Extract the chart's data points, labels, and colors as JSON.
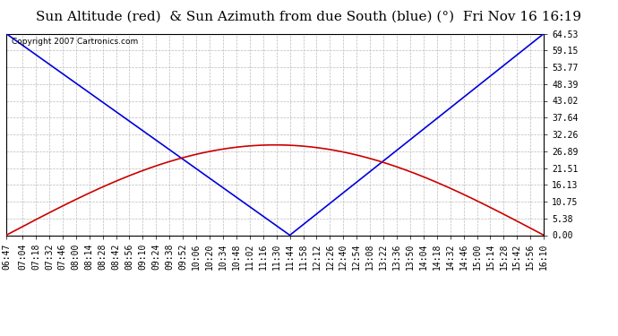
{
  "title": "Sun Altitude (red)  & Sun Azimuth from due South (blue) (°)  Fri Nov 16 16:19",
  "copyright": "Copyright 2007 Cartronics.com",
  "yticks": [
    0.0,
    5.38,
    10.75,
    16.13,
    21.51,
    26.89,
    32.26,
    37.64,
    43.02,
    48.39,
    53.77,
    59.15,
    64.53
  ],
  "ymin": 0.0,
  "ymax": 64.53,
  "xtick_labels": [
    "06:47",
    "07:04",
    "07:18",
    "07:32",
    "07:46",
    "08:00",
    "08:14",
    "08:28",
    "08:42",
    "08:56",
    "09:10",
    "09:24",
    "09:38",
    "09:52",
    "10:06",
    "10:20",
    "10:34",
    "10:48",
    "11:02",
    "11:16",
    "11:30",
    "11:44",
    "11:58",
    "12:12",
    "12:26",
    "12:40",
    "12:54",
    "13:08",
    "13:22",
    "13:36",
    "13:50",
    "14:04",
    "14:18",
    "14:32",
    "14:46",
    "15:00",
    "15:14",
    "15:28",
    "15:42",
    "15:56",
    "16:10"
  ],
  "background_color": "#ffffff",
  "plot_bg_color": "#ffffff",
  "grid_color": "#bbbbbb",
  "blue_line_color": "#0000dd",
  "red_line_color": "#cc0000",
  "title_fontsize": 11,
  "tick_fontsize": 7,
  "copyright_fontsize": 6.5,
  "azimuth_noon_time": "11:44",
  "altitude_peak": 28.9,
  "altitude_noon_time": "11:44",
  "t_start_label": "06:47",
  "t_end_label": "16:10"
}
